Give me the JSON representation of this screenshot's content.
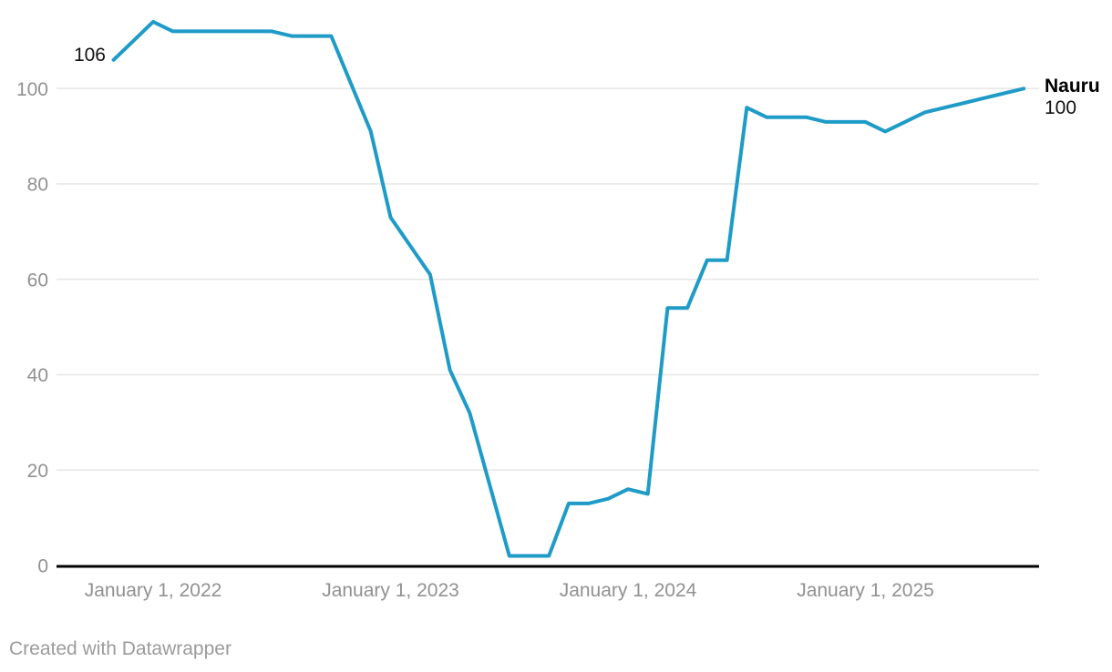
{
  "chart": {
    "series_label": "Nauru",
    "start_label": "106",
    "end_label": "100",
    "footer": "Created with Datawrapper"
  },
  "style": {
    "line_color": "#1E9BC7",
    "grid_color": "#E6E6E6",
    "axis_color": "#000000",
    "tick_label_color": "#919191",
    "annotation_color": "#111111"
  },
  "chart_data": {
    "type": "line",
    "title": "",
    "xlabel": "",
    "ylabel": "",
    "grid": true,
    "legend": "direct end-of-line label",
    "ylim": [
      0,
      115
    ],
    "x_range": [
      "2021-11",
      "2025-09"
    ],
    "yticks": [
      {
        "value": 0,
        "label": "0"
      },
      {
        "value": 20,
        "label": "20"
      },
      {
        "value": 40,
        "label": "40"
      },
      {
        "value": 60,
        "label": "60"
      },
      {
        "value": 80,
        "label": "80"
      },
      {
        "value": 100,
        "label": "100"
      }
    ],
    "xticks": [
      {
        "date": "2022-01",
        "label": "January 1, 2022"
      },
      {
        "date": "2023-01",
        "label": "January 1, 2023"
      },
      {
        "date": "2024-01",
        "label": "January 1, 2024"
      },
      {
        "date": "2025-01",
        "label": "January 1, 2025"
      }
    ],
    "series": [
      {
        "name": "Nauru",
        "start_value": 106,
        "end_value": 100,
        "x": [
          "2021-11",
          "2021-12",
          "2022-01",
          "2022-02",
          "2022-03",
          "2022-04",
          "2022-05",
          "2022-06",
          "2022-07",
          "2022-08",
          "2022-09",
          "2022-10",
          "2022-11",
          "2022-12",
          "2023-01",
          "2023-02",
          "2023-03",
          "2023-04",
          "2023-05",
          "2023-06",
          "2023-07",
          "2023-08",
          "2023-09",
          "2023-10",
          "2023-11",
          "2023-12",
          "2024-01",
          "2024-02",
          "2024-03",
          "2024-04",
          "2024-05",
          "2024-06",
          "2024-07",
          "2024-08",
          "2024-09",
          "2024-10",
          "2024-11",
          "2024-12",
          "2025-01",
          "2025-02",
          "2025-03",
          "2025-04",
          "2025-05",
          "2025-06",
          "2025-07",
          "2025-08",
          "2025-09"
        ],
        "values": [
          106,
          110,
          114,
          112,
          112,
          112,
          112,
          112,
          112,
          111,
          111,
          111,
          101,
          91,
          73,
          67,
          61,
          41,
          32,
          17,
          2,
          2,
          2,
          13,
          13,
          14,
          16,
          15,
          54,
          54,
          64,
          64,
          96,
          94,
          94,
          94,
          93,
          93,
          93,
          91,
          93,
          95,
          96,
          97,
          98,
          99,
          100
        ]
      }
    ]
  }
}
